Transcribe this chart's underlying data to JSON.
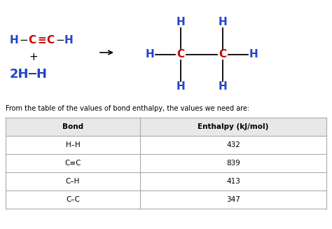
{
  "bg_color": "#ffffff",
  "blue": "#2244cc",
  "red": "#cc0000",
  "black": "#000000",
  "text_caption": "From the table of the values of bond enthalpy, the values we need are:",
  "table_headers": [
    "Bond",
    "Enthalpy (kJ/mol)"
  ],
  "table_rows": [
    [
      "H–H",
      "432"
    ],
    [
      "C≡C",
      "839"
    ],
    [
      "C–H",
      "413"
    ],
    [
      "C–C",
      "347"
    ]
  ],
  "figsize": [
    4.74,
    3.27
  ],
  "dpi": 100
}
